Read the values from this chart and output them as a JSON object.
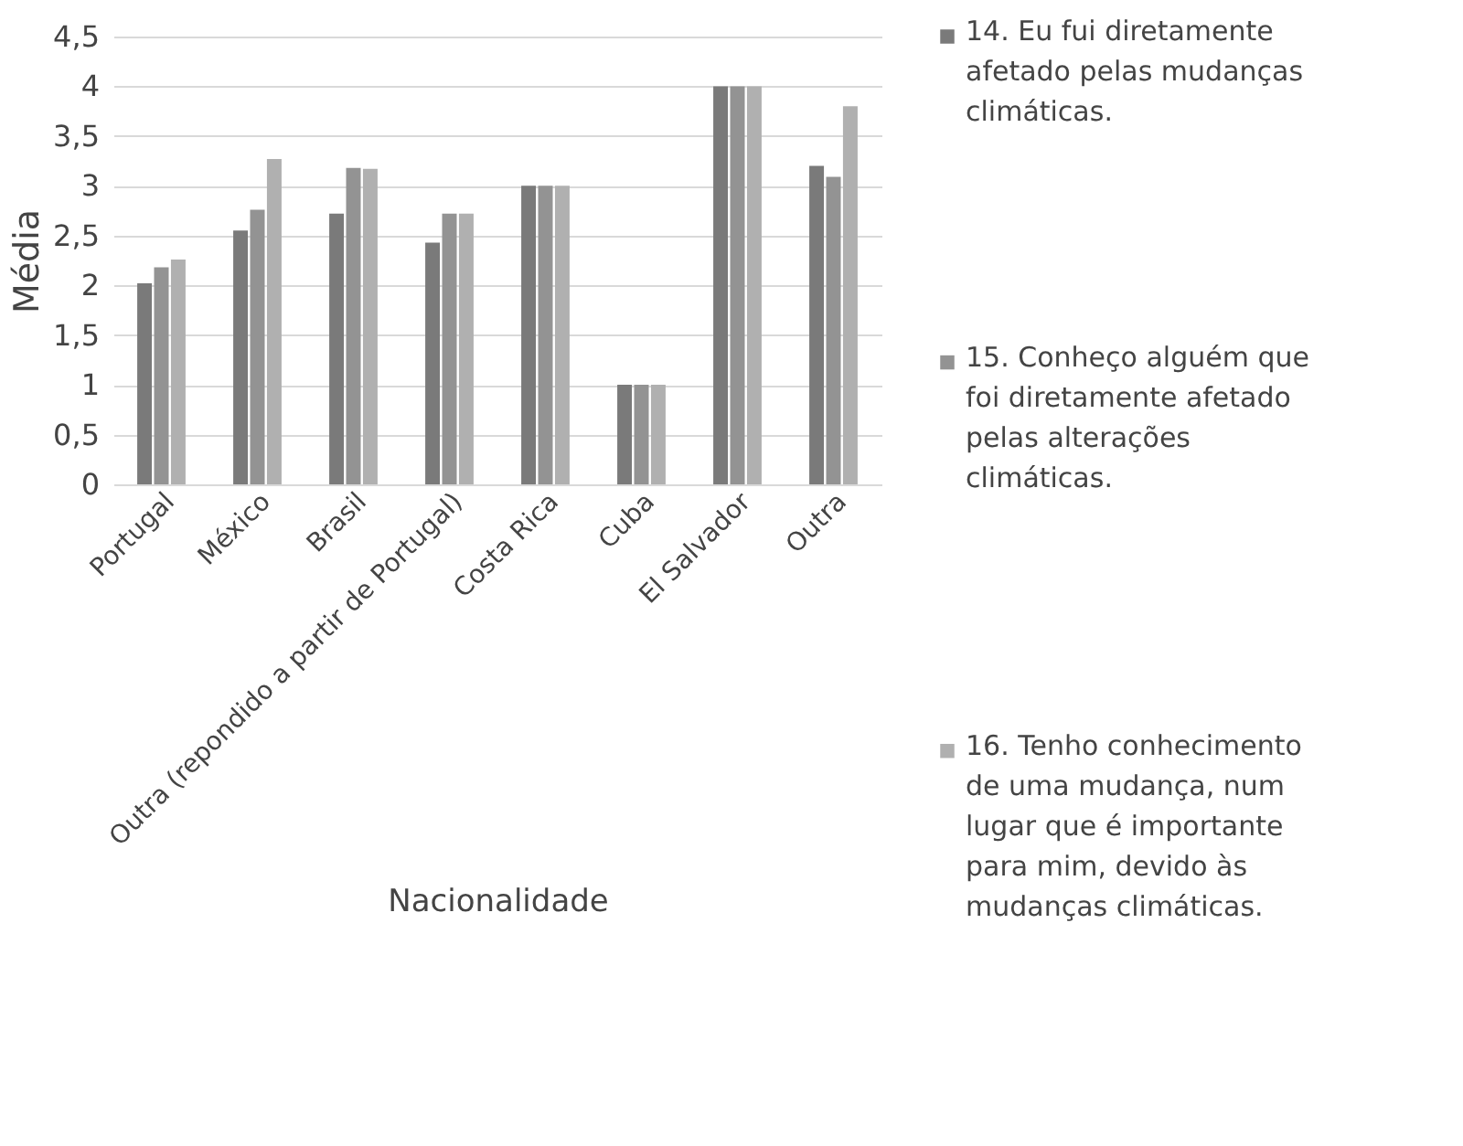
{
  "chart_data": {
    "type": "bar",
    "xlabel": "Nacionalidade",
    "ylabel": "Média",
    "categories": [
      "Portugal",
      "México",
      "Brasil",
      "Outra (repondido a partir de Portugal)",
      "Costa Rica",
      "Cuba",
      "El Salvador",
      "Outra"
    ],
    "series": [
      {
        "name": "14. Eu fui diretamente afetado pelas mudanças climáticas.",
        "color": "#7a7a7a",
        "values": [
          2.02,
          2.55,
          2.72,
          2.43,
          3,
          1,
          4,
          3.2
        ]
      },
      {
        "name": "15. Conheço alguém que foi diretamente afetado pelas alterações climáticas.",
        "color": "#939393",
        "values": [
          2.18,
          2.76,
          3.18,
          2.72,
          3,
          1,
          4,
          3.09
        ]
      },
      {
        "name": "16. Tenho conhecimento de uma mudança, num lugar que é importante para mim, devido às mudanças climáticas.",
        "color": "#b0b0b0",
        "values": [
          2.26,
          3.27,
          3.17,
          2.72,
          3,
          1,
          4,
          3.8
        ]
      }
    ],
    "ylim": [
      0,
      4.5
    ],
    "yticks": [
      0,
      {
        "value": 0.5,
        "label": "0,5"
      },
      1,
      {
        "value": 1.5,
        "label": "1,5"
      },
      2,
      {
        "value": 2.5,
        "label": "2,5"
      },
      3,
      {
        "value": 3.5,
        "label": "3,5"
      },
      4,
      {
        "value": 4.5,
        "label": "4,5"
      }
    ],
    "grid": "y",
    "legend": "right"
  }
}
